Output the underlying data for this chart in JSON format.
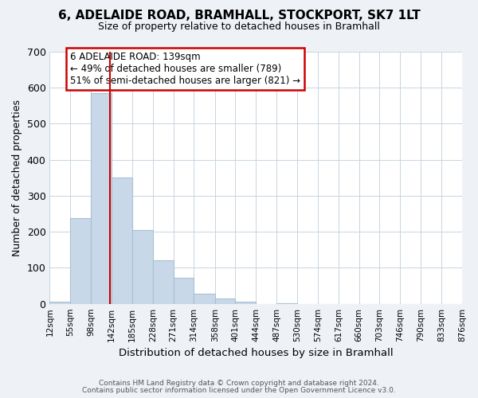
{
  "title": "6, ADELAIDE ROAD, BRAMHALL, STOCKPORT, SK7 1LT",
  "subtitle": "Size of property relative to detached houses in Bramhall",
  "xlabel": "Distribution of detached houses by size in Bramhall",
  "ylabel": "Number of detached properties",
  "bar_color": "#c8d8e8",
  "bar_edge_color": "#a8c0d4",
  "bin_edges": [
    12,
    55,
    98,
    142,
    185,
    228,
    271,
    314,
    358,
    401,
    444,
    487,
    530,
    574,
    617,
    660,
    703,
    746,
    790,
    833,
    876
  ],
  "bar_heights": [
    5,
    237,
    585,
    350,
    204,
    120,
    73,
    27,
    15,
    7,
    0,
    2,
    0,
    0,
    0,
    0,
    0,
    0,
    0,
    0
  ],
  "tick_labels": [
    "12sqm",
    "55sqm",
    "98sqm",
    "142sqm",
    "185sqm",
    "228sqm",
    "271sqm",
    "314sqm",
    "358sqm",
    "401sqm",
    "444sqm",
    "487sqm",
    "530sqm",
    "574sqm",
    "617sqm",
    "660sqm",
    "703sqm",
    "746sqm",
    "790sqm",
    "833sqm",
    "876sqm"
  ],
  "ylim": [
    0,
    700
  ],
  "yticks": [
    0,
    100,
    200,
    300,
    400,
    500,
    600,
    700
  ],
  "vline_x": 139,
  "vline_color": "#cc0000",
  "annotation_text": "6 ADELAIDE ROAD: 139sqm\n← 49% of detached houses are smaller (789)\n51% of semi-detached houses are larger (821) →",
  "annotation_box_color": "#ffffff",
  "annotation_box_edge": "#cc0000",
  "footer_line1": "Contains HM Land Registry data © Crown copyright and database right 2024.",
  "footer_line2": "Contains public sector information licensed under the Open Government Licence v3.0.",
  "background_color": "#eef2f7",
  "plot_bg_color": "#ffffff",
  "grid_color": "#c8d4e0"
}
